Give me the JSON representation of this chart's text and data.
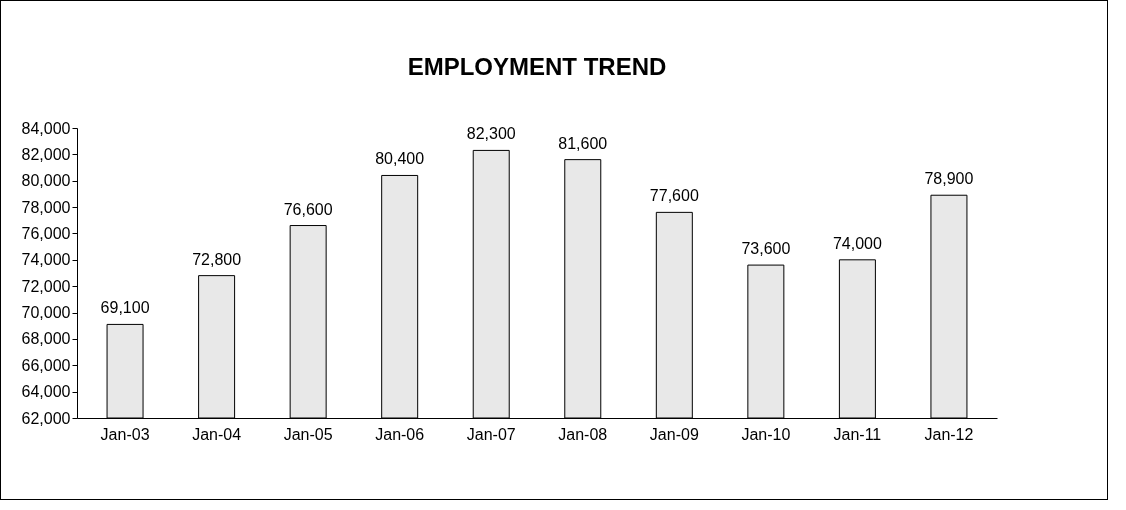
{
  "chart_data": {
    "type": "bar",
    "title": "EMPLOYMENT TREND",
    "categories": [
      "Jan-03",
      "Jan-04",
      "Jan-05",
      "Jan-06",
      "Jan-07",
      "Jan-08",
      "Jan-09",
      "Jan-10",
      "Jan-11",
      "Jan-12"
    ],
    "values": [
      69100,
      72800,
      76600,
      80400,
      82300,
      81600,
      77600,
      73600,
      74000,
      78900
    ],
    "value_labels": [
      "69,100",
      "72,800",
      "76,600",
      "80,400",
      "82,300",
      "81,600",
      "77,600",
      "73,600",
      "74,000",
      "78,900"
    ],
    "color": "#e8e8e8",
    "ylim": [
      62000,
      84000
    ],
    "yticks": [
      {
        "value": 62000,
        "label": "62,000"
      },
      {
        "value": 64000,
        "label": "64,000"
      },
      {
        "value": 66000,
        "label": "66,000"
      },
      {
        "value": 68000,
        "label": "68,000"
      },
      {
        "value": 70000,
        "label": "70,000"
      },
      {
        "value": 72000,
        "label": "72,000"
      },
      {
        "value": 74000,
        "label": "74,000"
      },
      {
        "value": 76000,
        "label": "76,000"
      },
      {
        "value": 78000,
        "label": "78,000"
      },
      {
        "value": 80000,
        "label": "80,000"
      },
      {
        "value": 82000,
        "label": "82,000"
      },
      {
        "value": 84000,
        "label": "84,000"
      }
    ],
    "grid": false
  }
}
